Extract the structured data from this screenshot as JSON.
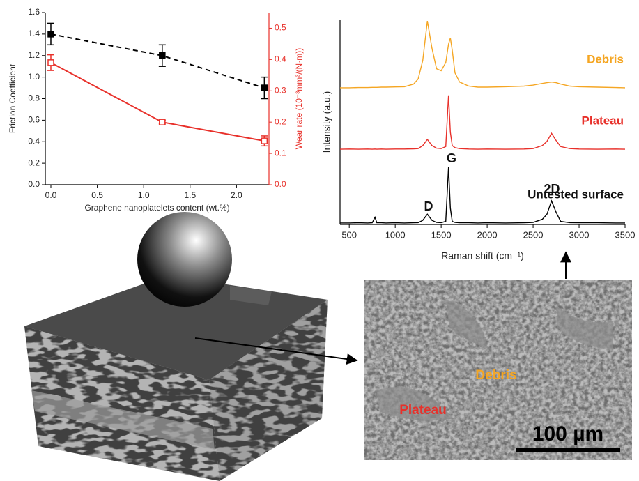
{
  "chart_data": [
    {
      "type": "line",
      "xlabel": "Graphene nanoplatelets content (wt.%)",
      "ylabel": "Friction Coefficient",
      "y2label": "Wear rate (10⁻³mm³/(N·m))",
      "x": [
        0,
        1.2,
        2.3
      ],
      "xlim": [
        -0.06,
        2.35
      ],
      "xticks": [
        {
          "value": 0,
          "label": "0.0"
        },
        0.5,
        {
          "value": 1,
          "label": "1.0"
        },
        1.5,
        {
          "value": 2,
          "label": "2.0"
        }
      ],
      "ylim": [
        0,
        1.6
      ],
      "yticks": [
        {
          "value": 0,
          "label": "0.0"
        },
        0.2,
        0.4,
        0.6,
        0.8,
        {
          "value": 1,
          "label": "1.0"
        },
        1.2,
        1.4,
        1.6
      ],
      "y2lim": [
        0,
        0.55
      ],
      "y2ticks": [
        {
          "value": 0,
          "label": "0.0"
        },
        0.1,
        0.2,
        0.3,
        0.4,
        0.5
      ],
      "series": [
        {
          "color": "#000000",
          "dashed": true,
          "marker": "filled-square",
          "values": [
            1.4,
            1.2,
            0.9
          ],
          "errors": [
            0.1,
            0.1,
            0.1
          ]
        },
        {
          "color": "#e8302a",
          "axis": "y2",
          "marker": "hollow-square",
          "values": [
            0.39,
            0.2,
            0.14
          ],
          "errors": [
            0.025,
            0.006,
            0.016
          ]
        }
      ]
    },
    {
      "type": "line",
      "xlabel": "Raman shift (cm⁻¹)",
      "ylabel": "Intensity (a.u.)",
      "annotations": [
        "D",
        "G",
        "2D"
      ],
      "x": [
        400,
        500,
        600,
        700,
        750,
        780,
        800,
        850,
        900,
        1000,
        1100,
        1200,
        1250,
        1300,
        1350,
        1400,
        1450,
        1500,
        1550,
        1580,
        1600,
        1620,
        1650,
        1700,
        1800,
        1900,
        2000,
        2200,
        2400,
        2500,
        2600,
        2650,
        2700,
        2750,
        2800,
        2900,
        3000,
        3200,
        3400,
        3500
      ],
      "xlim": [
        400,
        3500
      ],
      "xticks": [
        500,
        1000,
        1500,
        2000,
        2500,
        3000,
        3500
      ],
      "ylim": [
        0,
        10
      ],
      "series": [
        {
          "name": "Debris",
          "color": "#f5a623",
          "values": [
            6.67,
            6.67,
            6.68,
            6.68,
            6.69,
            6.69,
            6.69,
            6.7,
            6.7,
            6.71,
            6.72,
            6.85,
            7.1,
            8.0,
            9.93,
            8.6,
            7.6,
            7.5,
            7.9,
            8.8,
            9.1,
            8.5,
            7.4,
            6.95,
            6.75,
            6.7,
            6.7,
            6.72,
            6.75,
            6.8,
            6.88,
            6.92,
            6.95,
            6.92,
            6.85,
            6.75,
            6.72,
            6.7,
            6.68,
            6.67
          ]
        },
        {
          "name": "Plateau",
          "color": "#e8302a",
          "values": [
            3.67,
            3.68,
            3.67,
            3.68,
            3.67,
            3.68,
            3.67,
            3.68,
            3.67,
            3.68,
            3.68,
            3.69,
            3.7,
            3.85,
            4.15,
            3.85,
            3.72,
            3.7,
            3.8,
            6.3,
            4.5,
            3.85,
            3.75,
            3.7,
            3.68,
            3.67,
            3.68,
            3.67,
            3.68,
            3.7,
            3.85,
            4.05,
            4.45,
            4.1,
            3.8,
            3.7,
            3.68,
            3.67,
            3.68,
            3.67
          ]
        },
        {
          "name": "Untested surface",
          "color": "#000000",
          "values": [
            0.07,
            0.07,
            0.08,
            0.07,
            0.08,
            0.35,
            0.08,
            0.08,
            0.07,
            0.08,
            0.07,
            0.08,
            0.09,
            0.2,
            0.5,
            0.2,
            0.1,
            0.09,
            0.15,
            2.8,
            0.8,
            0.15,
            0.1,
            0.08,
            0.08,
            0.07,
            0.08,
            0.07,
            0.08,
            0.1,
            0.25,
            0.5,
            1.15,
            0.6,
            0.15,
            0.09,
            0.08,
            0.08,
            0.07,
            0.07
          ]
        }
      ]
    }
  ],
  "sem_image": {
    "labels": [
      "Debris",
      "Plateau"
    ],
    "scale_bar": "100 µm"
  }
}
